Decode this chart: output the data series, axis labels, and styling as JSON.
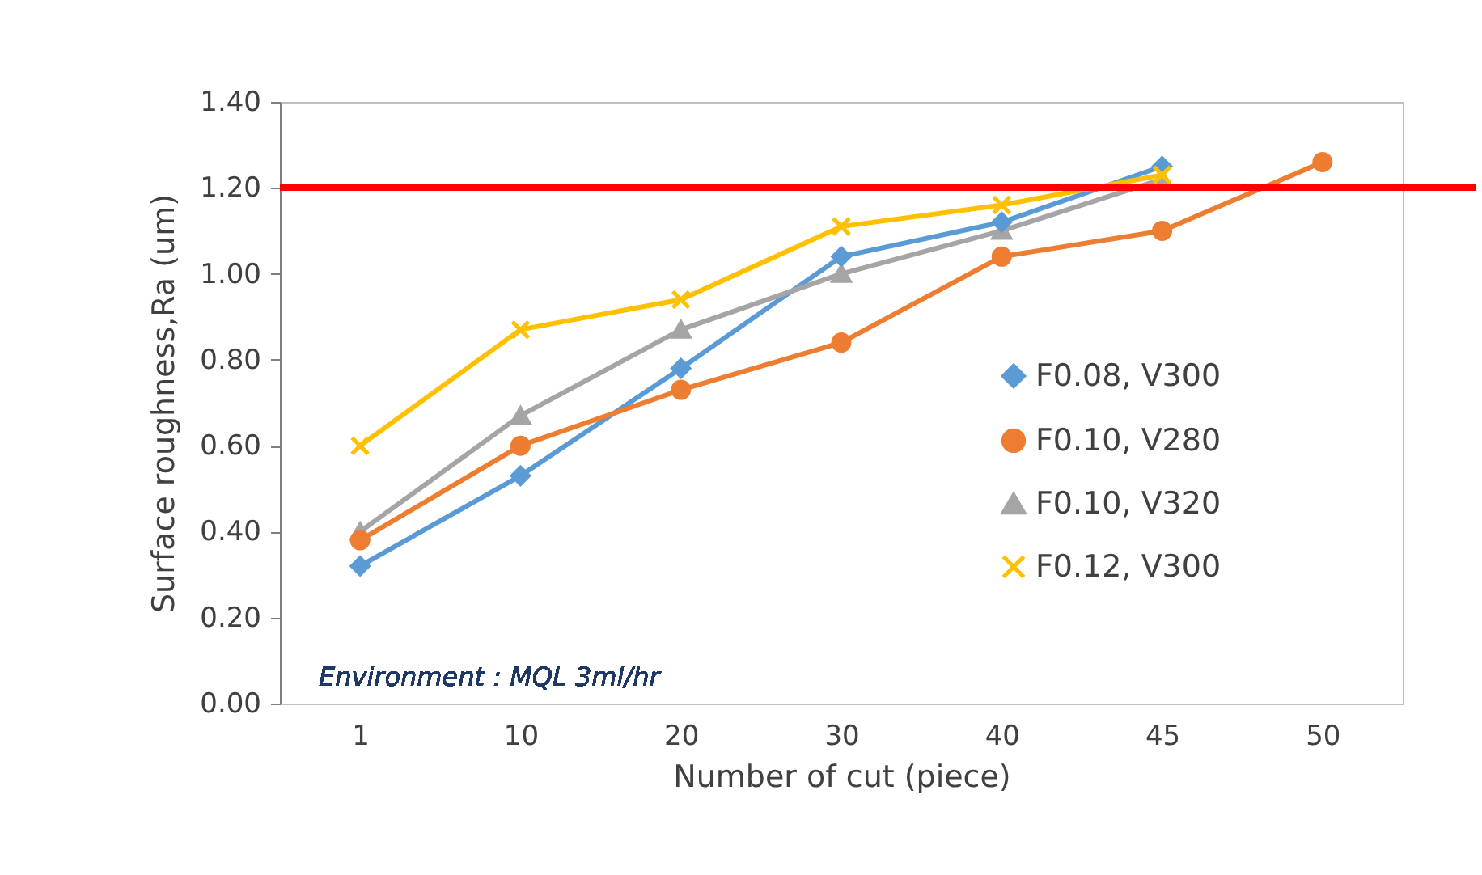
{
  "chart_data": {
    "type": "line",
    "xlabel": "Number of cut (piece)",
    "ylabel": "Surface roughness,Ra (um)",
    "categories": [
      "1",
      "10",
      "20",
      "30",
      "40",
      "45",
      "50"
    ],
    "series": [
      {
        "name": "F0.08, V300",
        "color": "#5b9bd5",
        "marker": "diamond",
        "values": [
          0.32,
          0.53,
          0.78,
          1.04,
          1.12,
          1.25,
          null
        ]
      },
      {
        "name": "F0.10, V280",
        "color": "#ed7d31",
        "marker": "circle",
        "values": [
          0.38,
          0.6,
          0.73,
          0.84,
          1.04,
          1.1,
          1.26
        ]
      },
      {
        "name": "F0.10, V320",
        "color": "#a5a5a5",
        "marker": "triangle",
        "values": [
          0.4,
          0.67,
          0.87,
          1.0,
          1.1,
          1.22,
          null
        ]
      },
      {
        "name": "F0.12, V300",
        "color": "#ffc000",
        "marker": "cross",
        "values": [
          0.6,
          0.87,
          0.94,
          1.11,
          1.16,
          1.23,
          null
        ]
      }
    ],
    "ylim": [
      0,
      1.4
    ],
    "yticks": [
      {
        "value": 0,
        "label": "0.00"
      },
      {
        "value": 0.2,
        "label": "0.20"
      },
      {
        "value": 0.4,
        "label": "0.40"
      },
      {
        "value": 0.6,
        "label": "0.60"
      },
      {
        "value": 0.8,
        "label": "0.80"
      },
      {
        "value": 1,
        "label": "1.00"
      },
      {
        "value": 1.2,
        "label": "1.20"
      },
      {
        "value": 1.4,
        "label": "1.40"
      }
    ],
    "ref_lines": [
      {
        "axis": "y",
        "value": 1.2,
        "color": "#ff0000"
      }
    ],
    "grid": false,
    "legend": "right",
    "line_style": "solid",
    "annotations": [
      "Environment : MQL 3ml/hr"
    ]
  }
}
